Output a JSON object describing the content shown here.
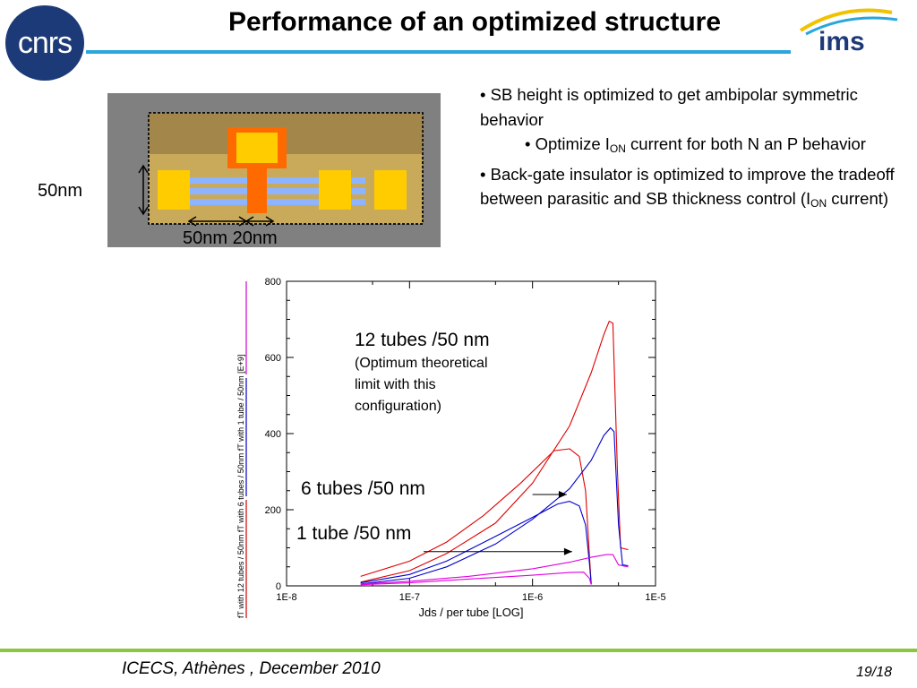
{
  "header": {
    "title": "Performance of an optimized structure",
    "logo_left_text": "cnrs",
    "logo_right_text": "ims"
  },
  "structure_figure": {
    "vertical_dim_label": "50nm",
    "horizontal_dim_label": "50nm 20nm",
    "colors": {
      "background": "#808080",
      "oxide": "#c9a95a",
      "top_oxide": "#a3874a",
      "gate": "#ff6a00",
      "contact": "#ffcc00",
      "tubes": "#8fb4ff"
    }
  },
  "bullets": {
    "b1": "• SB height is optimized  to get ambipolar symmetric behavior",
    "b2_pre": "• Optimize I",
    "b2_sub": "ON",
    "b2_post": " current for both N an P behavior",
    "b3_pre": "• Back-gate insulator  is optimized to improve the tradeoff between parasitic and SB thickness control (I",
    "b3_sub": "ON",
    "b3_post": " current)"
  },
  "chart_data": {
    "type": "line",
    "xscale": "log",
    "xlim": [
      1e-08,
      1e-05
    ],
    "ylim": [
      0,
      800
    ],
    "xticks": [
      "1E-8",
      "1E-7",
      "1E-6",
      "1E-5"
    ],
    "yticks": [
      "0",
      "200",
      "400",
      "600",
      "800"
    ],
    "xlabel": "Jds / per tube  [LOG]",
    "ylabel_parts": [
      {
        "text": "fT with 12 tubes / 50nm",
        "color": "#d00000"
      },
      {
        "text": "fT with 6 tubes / 50nm",
        "color": "#0000c0"
      },
      {
        "text": "fT with 1 tube / 50nm  [E+9]",
        "color": "#d000d0"
      }
    ],
    "annotations": {
      "a12_title": "12 tubes /50 nm",
      "a12_l1": "(Optimum theoretical",
      "a12_l2": "limit with this",
      "a12_l3": "configuration)",
      "a6": "6 tubes /50 nm",
      "a1": "1 tube /50 nm"
    },
    "series": [
      {
        "color": "#e00000",
        "points": [
          [
            4e-08,
            25
          ],
          [
            1e-07,
            65
          ],
          [
            2e-07,
            115
          ],
          [
            4e-07,
            185
          ],
          [
            8e-07,
            270
          ],
          [
            1.5e-06,
            355
          ],
          [
            2e-06,
            360
          ],
          [
            2.4e-06,
            340
          ],
          [
            2.7e-06,
            250
          ],
          [
            2.9e-06,
            80
          ],
          [
            3e-06,
            5
          ]
        ]
      },
      {
        "color": "#e00000",
        "points": [
          [
            4e-08,
            10
          ],
          [
            1e-07,
            40
          ],
          [
            2e-07,
            85
          ],
          [
            5e-07,
            165
          ],
          [
            1e-06,
            270
          ],
          [
            2e-06,
            420
          ],
          [
            3e-06,
            560
          ],
          [
            3.8e-06,
            660
          ],
          [
            4.2e-06,
            695
          ],
          [
            4.5e-06,
            690
          ],
          [
            4.9e-06,
            300
          ],
          [
            5.2e-06,
            100
          ],
          [
            6e-06,
            95
          ]
        ]
      },
      {
        "color": "#0000d0",
        "points": [
          [
            4e-08,
            5
          ],
          [
            1e-07,
            20
          ],
          [
            2e-07,
            50
          ],
          [
            5e-07,
            110
          ],
          [
            1e-06,
            175
          ],
          [
            2e-06,
            255
          ],
          [
            3e-06,
            330
          ],
          [
            3.8e-06,
            395
          ],
          [
            4.3e-06,
            415
          ],
          [
            4.6e-06,
            405
          ],
          [
            5e-06,
            160
          ],
          [
            5.4e-06,
            55
          ],
          [
            6e-06,
            53
          ]
        ]
      },
      {
        "color": "#0000d0",
        "points": [
          [
            4e-08,
            8
          ],
          [
            1e-07,
            30
          ],
          [
            2e-07,
            65
          ],
          [
            5e-07,
            130
          ],
          [
            1e-06,
            180
          ],
          [
            1.6e-06,
            215
          ],
          [
            2e-06,
            222
          ],
          [
            2.4e-06,
            210
          ],
          [
            2.7e-06,
            160
          ],
          [
            2.9e-06,
            60
          ],
          [
            3e-06,
            5
          ]
        ]
      },
      {
        "color": "#e000e0",
        "points": [
          [
            4e-08,
            5
          ],
          [
            1e-07,
            12
          ],
          [
            3e-07,
            25
          ],
          [
            1e-06,
            45
          ],
          [
            2e-06,
            62
          ],
          [
            3e-06,
            75
          ],
          [
            4e-06,
            82
          ],
          [
            4.5e-06,
            82
          ],
          [
            5e-06,
            55
          ],
          [
            6e-06,
            50
          ]
        ]
      },
      {
        "color": "#e000e0",
        "points": [
          [
            4e-08,
            3
          ],
          [
            1e-07,
            8
          ],
          [
            3e-07,
            18
          ],
          [
            1e-06,
            28
          ],
          [
            2e-06,
            35
          ],
          [
            2.6e-06,
            36
          ],
          [
            2.9e-06,
            20
          ],
          [
            3e-06,
            3
          ]
        ]
      }
    ],
    "arrows": [
      {
        "from": [
          1e-06,
          240
        ],
        "to": [
          1.9e-06,
          240
        ]
      },
      {
        "from": [
          1.3e-07,
          90
        ],
        "to": [
          2.1e-06,
          90
        ]
      }
    ]
  },
  "footer": {
    "left": "ICECS, Athènes , December 2010",
    "right": "19/18"
  }
}
